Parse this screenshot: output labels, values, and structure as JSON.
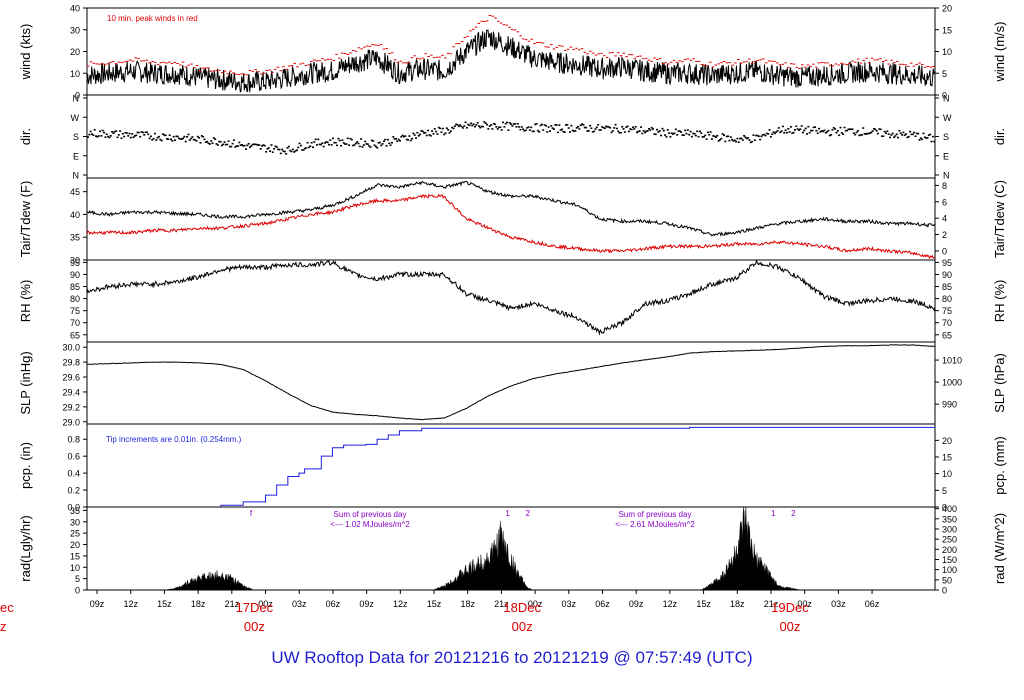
{
  "chart_data": {
    "type": "line",
    "title": "UW Rooftop Data for 20121216  to  20121219 @ 07:57:49  (UTC)",
    "time_axis": {
      "tick_labels": [
        "09z",
        "12z",
        "15z",
        "18z",
        "21z",
        "00z",
        "03z",
        "06z",
        "09z",
        "12z",
        "15z",
        "18z",
        "21z",
        "00z",
        "03z",
        "06z",
        "09z",
        "12z",
        "15z",
        "18z",
        "21z",
        "00z",
        "03z",
        "06z"
      ],
      "range_hours": [
        0,
        76
      ],
      "day_labels": [
        {
          "date": "17Dec",
          "hour": "00z",
          "at_hours": 15
        },
        {
          "date": "18Dec",
          "hour": "00z",
          "at_hours": 39
        },
        {
          "date": "19Dec",
          "hour": "00z",
          "at_hours": 63
        }
      ],
      "cut_day_label": {
        "date": "ec",
        "hour": "z"
      }
    },
    "panels": [
      {
        "id": "wind",
        "ylabel_left": "wind (kts)",
        "ylabel_right": "wind (m/s)",
        "left_ticks": [
          0,
          10,
          20,
          30,
          40
        ],
        "left_lim": [
          0,
          40
        ],
        "right_ticks": [
          0,
          5,
          10,
          15,
          20
        ],
        "right_lim": [
          0,
          20
        ],
        "annotation": "10 min. peak winds in red",
        "series": [
          {
            "name": "wind speed (kts)",
            "color": "#000000",
            "x": [
              0,
              2,
              4,
              6,
              8,
              10,
              12,
              14,
              16,
              18,
              20,
              22,
              24,
              26,
              28,
              30,
              32,
              34,
              36,
              38,
              40,
              42,
              44,
              46,
              48,
              50,
              52,
              54,
              56,
              58,
              60,
              62,
              64,
              66,
              68,
              70,
              72,
              74,
              76
            ],
            "y": [
              9,
              10,
              11,
              10,
              10,
              8,
              7,
              6,
              6,
              8,
              10,
              11,
              15,
              17,
              10,
              12,
              11,
              20,
              27,
              22,
              17,
              15,
              14,
              12,
              13,
              11,
              10,
              10,
              9,
              10,
              11,
              9,
              8,
              9,
              10,
              11,
              10,
              9,
              8
            ]
          },
          {
            "name": "10 min. peak winds",
            "color": "#dd0000",
            "x": [
              0,
              2,
              4,
              6,
              8,
              10,
              12,
              14,
              16,
              18,
              20,
              22,
              24,
              26,
              28,
              30,
              32,
              34,
              36,
              38,
              40,
              42,
              44,
              46,
              48,
              50,
              52,
              54,
              56,
              58,
              60,
              62,
              64,
              66,
              68,
              70,
              72,
              74,
              76
            ],
            "y": [
              14,
              15,
              16,
              15,
              15,
              12,
              11,
              10,
              11,
              13,
              15,
              17,
              21,
              24,
              15,
              18,
              17,
              28,
              36,
              30,
              24,
              22,
              21,
              18,
              19,
              17,
              15,
              16,
              14,
              15,
              16,
              14,
              13,
              14,
              15,
              16,
              15,
              14,
              12
            ]
          }
        ]
      },
      {
        "id": "dir",
        "ylabel_left": "dir.",
        "ylabel_right": "dir.",
        "left_ticks": [
          "N",
          "E",
          "S",
          "W",
          "N"
        ],
        "right_ticks": [
          "N",
          "E",
          "S",
          "W",
          "N"
        ],
        "left_lim": [
          0,
          360
        ],
        "series": [
          {
            "name": "wind direction (deg)",
            "color": "#000000",
            "style": "dots",
            "x": [
              0,
              4,
              8,
              12,
              14,
              16,
              18,
              20,
              22,
              24,
              26,
              28,
              30,
              32,
              34,
              36,
              38,
              40,
              42,
              44,
              46,
              48,
              50,
              52,
              54,
              56,
              58,
              60,
              62,
              64,
              66,
              68,
              70,
              72,
              74,
              76
            ],
            "y": [
              200,
              190,
              180,
              160,
              140,
              130,
              120,
              150,
              160,
              155,
              150,
              170,
              200,
              210,
              235,
              235,
              230,
              225,
              220,
              225,
              220,
              220,
              210,
              200,
              195,
              185,
              170,
              175,
              215,
              215,
              205,
              210,
              205,
              195,
              190,
              170
            ]
          }
        ]
      },
      {
        "id": "temp",
        "ylabel_left": "Tair/Tdew (F)",
        "ylabel_right": "Tair/Tdew (C)",
        "left_ticks": [
          30,
          35,
          40,
          45
        ],
        "left_lim": [
          30,
          48
        ],
        "right_ticks": [
          0,
          2,
          4,
          6,
          8
        ],
        "right_lim": [
          -1.1,
          8.9
        ],
        "series": [
          {
            "name": "Tair (F)",
            "color": "#000000",
            "x": [
              0,
              2,
              4,
              6,
              8,
              10,
              12,
              14,
              16,
              18,
              20,
              22,
              24,
              26,
              28,
              30,
              32,
              34,
              36,
              38,
              40,
              42,
              44,
              46,
              48,
              50,
              52,
              54,
              56,
              58,
              60,
              62,
              64,
              66,
              68,
              70,
              72,
              74,
              76
            ],
            "y": [
              40.5,
              40,
              40.5,
              40.5,
              40.2,
              40,
              39.5,
              39.5,
              40,
              40.5,
              41,
              42,
              44,
              46.5,
              46,
              47,
              46,
              47,
              45,
              44,
              44,
              43,
              42,
              39,
              38.5,
              38.5,
              38,
              37,
              35.5,
              36,
              37,
              38,
              38.5,
              39,
              38.5,
              38.5,
              38,
              38,
              37.5
            ]
          },
          {
            "name": "Tdew (F)",
            "color": "#dd0000",
            "x": [
              0,
              2,
              4,
              6,
              8,
              10,
              12,
              14,
              16,
              18,
              20,
              22,
              24,
              26,
              28,
              30,
              32,
              34,
              36,
              38,
              40,
              42,
              44,
              46,
              48,
              50,
              52,
              54,
              56,
              58,
              60,
              62,
              64,
              66,
              68,
              70,
              72,
              74,
              76
            ],
            "y": [
              36,
              36,
              36,
              36.5,
              36.5,
              37,
              37,
              37.5,
              38,
              39,
              40,
              40.5,
              42,
              43,
              43,
              44,
              44,
              39,
              37,
              35,
              34,
              33,
              32.5,
              32,
              32,
              32.5,
              33,
              33,
              33,
              33.5,
              33.5,
              34,
              33.5,
              33,
              32,
              32.5,
              32,
              31.5,
              30.5
            ]
          }
        ]
      },
      {
        "id": "rh",
        "ylabel_left": "RH (%)",
        "ylabel_right": "RH (%)",
        "left_ticks": [
          65,
          70,
          75,
          80,
          85,
          90,
          95
        ],
        "left_lim": [
          62,
          96
        ],
        "right_ticks": [
          65,
          70,
          75,
          80,
          85,
          90,
          95
        ],
        "right_lim": [
          62,
          96
        ],
        "series": [
          {
            "name": "RH (%)",
            "color": "#000000",
            "x": [
              0,
              2,
              4,
              6,
              8,
              10,
              12,
              14,
              16,
              18,
              20,
              22,
              24,
              26,
              28,
              30,
              32,
              34,
              36,
              38,
              40,
              42,
              44,
              46,
              48,
              50,
              52,
              54,
              56,
              58,
              60,
              62,
              64,
              66,
              68,
              70,
              72,
              74,
              76
            ],
            "y": [
              83,
              85,
              86,
              86,
              87,
              89,
              92,
              93,
              93,
              94,
              94,
              95,
              90,
              88,
              90,
              90,
              90,
              82,
              79,
              76,
              78,
              75,
              72,
              66,
              70,
              78,
              79,
              82,
              86,
              88,
              95,
              93,
              88,
              81,
              78,
              79,
              80,
              79,
              76
            ]
          }
        ]
      },
      {
        "id": "slp",
        "ylabel_left": "SLP (inHg)",
        "ylabel_right": "SLP (hPa)",
        "left_ticks": [
          29.0,
          29.2,
          29.4,
          29.6,
          29.8,
          30.0
        ],
        "left_lim": [
          28.97,
          30.07
        ],
        "right_ticks": [
          990,
          1000,
          1010
        ],
        "right_lim": [
          981,
          1018.2
        ],
        "series": [
          {
            "name": "SLP (inHg)",
            "color": "#000000",
            "x": [
              0,
              2,
              4,
              6,
              8,
              10,
              12,
              14,
              16,
              18,
              20,
              22,
              24,
              26,
              28,
              30,
              32,
              34,
              36,
              38,
              40,
              42,
              44,
              46,
              48,
              50,
              52,
              54,
              56,
              58,
              60,
              62,
              64,
              66,
              68,
              70,
              72,
              74,
              76
            ],
            "y": [
              29.77,
              29.78,
              29.79,
              29.8,
              29.8,
              29.79,
              29.77,
              29.7,
              29.55,
              29.38,
              29.22,
              29.13,
              29.1,
              29.08,
              29.05,
              29.03,
              29.05,
              29.18,
              29.35,
              29.48,
              29.58,
              29.64,
              29.69,
              29.74,
              29.79,
              29.83,
              29.87,
              29.92,
              29.94,
              29.95,
              29.96,
              29.97,
              29.99,
              30.01,
              30.02,
              30.02,
              30.03,
              30.03,
              30.01
            ]
          }
        ]
      },
      {
        "id": "pcp",
        "ylabel_left": "pcp. (in)",
        "ylabel_right": "pcp. (mm)",
        "left_ticks": [
          0.0,
          0.2,
          0.4,
          0.6,
          0.8
        ],
        "left_lim": [
          0,
          0.98
        ],
        "right_ticks": [
          0,
          5,
          10,
          15,
          20
        ],
        "right_lim": [
          0,
          24.9
        ],
        "annotation": "Tip increments are 0.01in. (0.254mm.)",
        "series": [
          {
            "name": "precipitation (in)",
            "color": "#1f1fe0",
            "style": "step",
            "x": [
              0,
              10,
              12,
              14,
              16,
              17,
              18,
              19,
              19.5,
              21,
              22,
              23,
              24,
              25,
              26,
              27,
              28,
              30,
              31,
              32,
              33,
              53,
              54,
              76
            ],
            "y": [
              0,
              0,
              0.02,
              0.06,
              0.14,
              0.26,
              0.36,
              0.4,
              0.45,
              0.6,
              0.7,
              0.73,
              0.73,
              0.74,
              0.8,
              0.85,
              0.9,
              0.93,
              0.93,
              0.93,
              0.93,
              0.93,
              0.94,
              0.94
            ]
          }
        ]
      },
      {
        "id": "rad",
        "ylabel_left": "rad(Lgly/hr)",
        "ylabel_right": "rad (W/m^2)",
        "left_ticks": [
          0,
          5,
          10,
          15,
          20,
          25,
          30,
          35
        ],
        "left_lim": [
          0,
          36.5
        ],
        "right_ticks": [
          0,
          50,
          100,
          150,
          200,
          250,
          300,
          350,
          400
        ],
        "right_lim": [
          0,
          408
        ],
        "annotations": [
          {
            "text": "Sum of previous day",
            "sub": "<--- 1.02 MJoules/m^2"
          },
          {
            "text": "Sum of previous day",
            "sub": "<--- 2.61 MJoules/m^2"
          }
        ],
        "markers": [
          {
            "label": "f",
            "at_hours": 14.7
          },
          {
            "label": "1",
            "at_hours": 37.7
          },
          {
            "label": "2",
            "at_hours": 39.5
          },
          {
            "label": "1",
            "at_hours": 61.5
          },
          {
            "label": "2",
            "at_hours": 63.3
          }
        ],
        "series": [
          {
            "name": "solar radiation",
            "color": "#000000",
            "style": "area",
            "x": [
              7,
              8,
              9,
              10,
              11,
              12,
              13,
              14,
              15,
              15.5,
              31,
              32,
              33,
              34,
              35,
              36,
              36.5,
              37,
              37.5,
              38,
              38.5,
              39,
              39.5,
              40,
              55,
              56,
              57,
              57.5,
              58,
              58.5,
              59,
              59.5,
              60,
              61,
              61.5,
              62,
              63,
              64
            ],
            "y": [
              0,
              1,
              4,
              6,
              7,
              8,
              6,
              2,
              0,
              0,
              0,
              2,
              6,
              10,
              13,
              17,
              20,
              28,
              22,
              15,
              10,
              5,
              1,
              0,
              0,
              3,
              8,
              12,
              17,
              25,
              35,
              22,
              15,
              10,
              5,
              2,
              1,
              0
            ]
          }
        ]
      }
    ]
  }
}
